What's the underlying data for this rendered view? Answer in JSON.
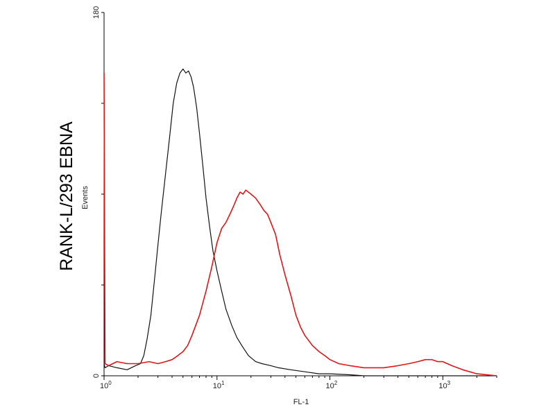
{
  "chart_data": {
    "type": "line",
    "title": "",
    "side_title": "RANK-L/293 EBNA",
    "xlabel": "FL-1",
    "ylabel": "Events",
    "x_scale": "log",
    "xlim": [
      1,
      3000
    ],
    "ylim": [
      0,
      180
    ],
    "y_ticks": [
      {
        "value": 0,
        "label": "0"
      },
      {
        "value": 180,
        "label": "180"
      }
    ],
    "x_ticks": [
      {
        "value": 1,
        "base": "10",
        "exp": "0"
      },
      {
        "value": 10,
        "base": "10",
        "exp": "1"
      },
      {
        "value": 100,
        "base": "10",
        "exp": "2"
      },
      {
        "value": 1000,
        "base": "10",
        "exp": "3"
      }
    ],
    "grid": false,
    "legend": "none",
    "series": [
      {
        "color": "#111111",
        "x": [
          1,
          1.02,
          1.1,
          1.3,
          1.6,
          1.9,
          2.1,
          2.25,
          2.4,
          2.6,
          2.8,
          3.0,
          3.2,
          3.5,
          3.8,
          4.1,
          4.4,
          4.7,
          5.0,
          5.3,
          5.6,
          5.9,
          6.2,
          6.6,
          7.0,
          7.5,
          8.0,
          8.6,
          9.2,
          10,
          11,
          12,
          13.5,
          15,
          17,
          19,
          22,
          25,
          30,
          35,
          45,
          60,
          80,
          100,
          150,
          200,
          3000
        ],
        "y": [
          6,
          4,
          5,
          4,
          3,
          5,
          6,
          10,
          18,
          30,
          48,
          65,
          80,
          100,
          118,
          135,
          145,
          150,
          152,
          150,
          151,
          148,
          143,
          133,
          120,
          104,
          88,
          74,
          62,
          52,
          42,
          33,
          25,
          19,
          14,
          10,
          7,
          6,
          5,
          4,
          3,
          2,
          1,
          1,
          0.5,
          0,
          0
        ]
      },
      {
        "color": "#e01515",
        "x": [
          1,
          1.02,
          1.1,
          1.3,
          1.6,
          2.0,
          2.5,
          3.0,
          3.5,
          4.0,
          4.5,
          5.0,
          5.5,
          6.0,
          7.0,
          8.0,
          9.0,
          10,
          11,
          12,
          13,
          14,
          15,
          16,
          17,
          18,
          20,
          22,
          24,
          26,
          28,
          30,
          33,
          36,
          40,
          45,
          50,
          55,
          60,
          70,
          80,
          90,
          100,
          120,
          150,
          200,
          250,
          300,
          400,
          500,
          600,
          700,
          800,
          900,
          1000,
          1200,
          1500,
          2000,
          3000
        ],
        "y": [
          150,
          6,
          5,
          7,
          6,
          6,
          7,
          6,
          7,
          8,
          10,
          12,
          15,
          20,
          30,
          42,
          54,
          66,
          73,
          76,
          80,
          84,
          88,
          91,
          90,
          92,
          90,
          88,
          85,
          82,
          80,
          76,
          70,
          60,
          50,
          40,
          30,
          24,
          20,
          15,
          12,
          10,
          8,
          6,
          5,
          4,
          4,
          4,
          5,
          6,
          7,
          8,
          8,
          7,
          7,
          5,
          3,
          1,
          0
        ]
      }
    ]
  }
}
